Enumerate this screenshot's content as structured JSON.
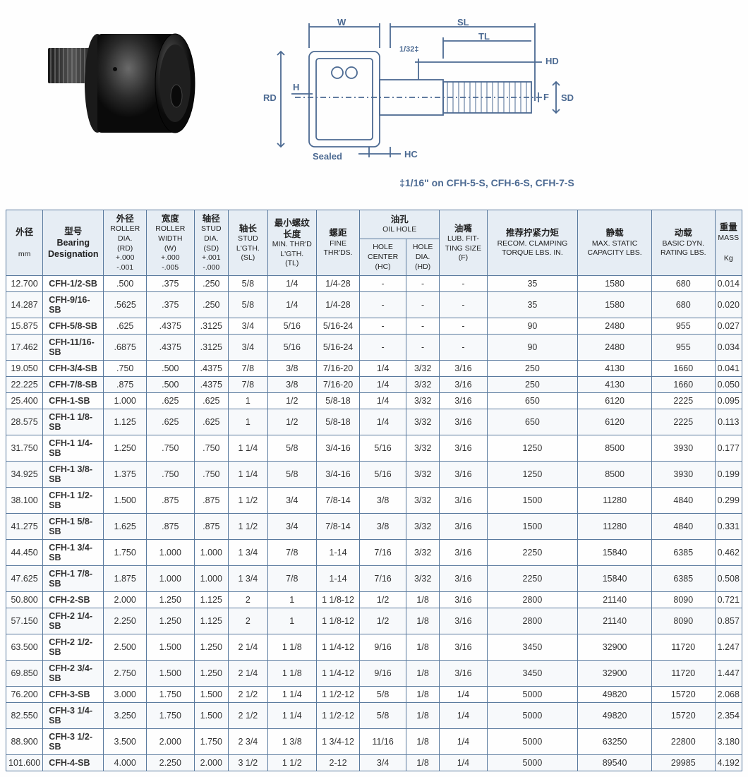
{
  "diagram": {
    "labels": {
      "W": "W",
      "SL": "SL",
      "TL": "TL",
      "HD": "HD",
      "SD": "SD",
      "F": "F",
      "RD": "RD",
      "H": "H",
      "HC": "HC",
      "Sealed": "Sealed",
      "tol1": "1/32‡"
    },
    "caption": "‡1/16\" on CFH-5-S, CFH-6-S, CFH-7-S",
    "line_color": "#4c6a92",
    "text_color": "#4c6a92",
    "bg_color": "#ffffff"
  },
  "table": {
    "border_color": "#5a7a9e",
    "header_bg": "#e6edf4",
    "row_alt_bg": "#f7f9fb",
    "headers": {
      "od": {
        "cn": "外径",
        "en": "",
        "unit": "mm"
      },
      "desig": {
        "cn": "型号",
        "en1": "Bearing",
        "en2": "Designation"
      },
      "rd": {
        "cn": "外径",
        "en": "ROLLER DIA.",
        "code": "(RD)",
        "tol": "+.000\n-.001"
      },
      "w": {
        "cn": "宽度",
        "en": "ROLLER WIDTH",
        "code": "(W)",
        "tol": "+.000\n-.005"
      },
      "sd": {
        "cn": "轴径",
        "en": "STUD DIA.",
        "code": "(SD)",
        "tol": "+.001\n-.000"
      },
      "sl": {
        "cn": "轴长",
        "en": "STUD L'GTH.",
        "code": "(SL)"
      },
      "tl": {
        "cn": "最小螺纹长度",
        "en": "MIN. THR'D L'GTH.",
        "code": "(TL)"
      },
      "thrds": {
        "cn": "螺距",
        "en": "FINE THR'DS."
      },
      "oilhole": {
        "cn": "油孔",
        "en": "OIL HOLE"
      },
      "hc": {
        "en": "HOLE CENTER",
        "code": "(HC)"
      },
      "hd": {
        "en": "HOLE DIA.",
        "code": "(HD)"
      },
      "f": {
        "cn": "油嘴",
        "en": "LUB. FIT-TING SIZE",
        "code": "(F)"
      },
      "torque": {
        "cn": "推荐拧紧力矩",
        "en": "RECOM. CLAMPING TORQUE LBS. IN."
      },
      "static": {
        "cn": "静载",
        "en": "MAX. STATIC CAPACITY LBS."
      },
      "dyn": {
        "cn": "动载",
        "en": "BASIC DYN. RATING LBS."
      },
      "mass": {
        "cn": "重量",
        "en": "MASS",
        "unit": "Kg"
      }
    },
    "rows": [
      {
        "od": "12.700",
        "desig": "CFH-1/2-SB",
        "rd": ".500",
        "w": ".375",
        "sd": ".250",
        "sl": "5/8",
        "tl": "1/4",
        "thrds": "1/4-28",
        "hc": "-",
        "hd": "-",
        "f": "-",
        "torque": "35",
        "static": "1580",
        "dyn": "680",
        "mass": "0.014"
      },
      {
        "od": "14.287",
        "desig": "CFH-9/16-SB",
        "rd": ".5625",
        "w": ".375",
        "sd": ".250",
        "sl": "5/8",
        "tl": "1/4",
        "thrds": "1/4-28",
        "hc": "-",
        "hd": "-",
        "f": "-",
        "torque": "35",
        "static": "1580",
        "dyn": "680",
        "mass": "0.020"
      },
      {
        "od": "15.875",
        "desig": "CFH-5/8-SB",
        "rd": ".625",
        "w": ".4375",
        "sd": ".3125",
        "sl": "3/4",
        "tl": "5/16",
        "thrds": "5/16-24",
        "hc": "-",
        "hd": "-",
        "f": "-",
        "torque": "90",
        "static": "2480",
        "dyn": "955",
        "mass": "0.027"
      },
      {
        "od": "17.462",
        "desig": "CFH-11/16-SB",
        "rd": ".6875",
        "w": ".4375",
        "sd": ".3125",
        "sl": "3/4",
        "tl": "5/16",
        "thrds": "5/16-24",
        "hc": "-",
        "hd": "-",
        "f": "-",
        "torque": "90",
        "static": "2480",
        "dyn": "955",
        "mass": "0.034"
      },
      {
        "od": "19.050",
        "desig": "CFH-3/4-SB",
        "rd": ".750",
        "w": ".500",
        "sd": ".4375",
        "sl": "7/8",
        "tl": "3/8",
        "thrds": "7/16-20",
        "hc": "1/4",
        "hd": "3/32",
        "f": "3/16",
        "torque": "250",
        "static": "4130",
        "dyn": "1660",
        "mass": "0.041"
      },
      {
        "od": "22.225",
        "desig": "CFH-7/8-SB",
        "rd": ".875",
        "w": ".500",
        "sd": ".4375",
        "sl": "7/8",
        "tl": "3/8",
        "thrds": "7/16-20",
        "hc": "1/4",
        "hd": "3/32",
        "f": "3/16",
        "torque": "250",
        "static": "4130",
        "dyn": "1660",
        "mass": "0.050"
      },
      {
        "od": "25.400",
        "desig": "CFH-1-SB",
        "rd": "1.000",
        "w": ".625",
        "sd": ".625",
        "sl": "1",
        "tl": "1/2",
        "thrds": "5/8-18",
        "hc": "1/4",
        "hd": "3/32",
        "f": "3/16",
        "torque": "650",
        "static": "6120",
        "dyn": "2225",
        "mass": "0.095"
      },
      {
        "od": "28.575",
        "desig": "CFH-1 1/8-SB",
        "rd": "1.125",
        "w": ".625",
        "sd": ".625",
        "sl": "1",
        "tl": "1/2",
        "thrds": "5/8-18",
        "hc": "1/4",
        "hd": "3/32",
        "f": "3/16",
        "torque": "650",
        "static": "6120",
        "dyn": "2225",
        "mass": "0.113"
      },
      {
        "od": "31.750",
        "desig": "CFH-1 1/4-SB",
        "rd": "1.250",
        "w": ".750",
        "sd": ".750",
        "sl": "1 1/4",
        "tl": "5/8",
        "thrds": "3/4-16",
        "hc": "5/16",
        "hd": "3/32",
        "f": "3/16",
        "torque": "1250",
        "static": "8500",
        "dyn": "3930",
        "mass": "0.177"
      },
      {
        "od": "34.925",
        "desig": "CFH-1 3/8-SB",
        "rd": "1.375",
        "w": ".750",
        "sd": ".750",
        "sl": "1 1/4",
        "tl": "5/8",
        "thrds": "3/4-16",
        "hc": "5/16",
        "hd": "3/32",
        "f": "3/16",
        "torque": "1250",
        "static": "8500",
        "dyn": "3930",
        "mass": "0.199"
      },
      {
        "od": "38.100",
        "desig": "CFH-1 1/2-SB",
        "rd": "1.500",
        "w": ".875",
        "sd": ".875",
        "sl": "1 1/2",
        "tl": "3/4",
        "thrds": "7/8-14",
        "hc": "3/8",
        "hd": "3/32",
        "f": "3/16",
        "torque": "1500",
        "static": "11280",
        "dyn": "4840",
        "mass": "0.299"
      },
      {
        "od": "41.275",
        "desig": "CFH-1 5/8-SB",
        "rd": "1.625",
        "w": ".875",
        "sd": ".875",
        "sl": "1 1/2",
        "tl": "3/4",
        "thrds": "7/8-14",
        "hc": "3/8",
        "hd": "3/32",
        "f": "3/16",
        "torque": "1500",
        "static": "11280",
        "dyn": "4840",
        "mass": "0.331"
      },
      {
        "od": "44.450",
        "desig": "CFH-1 3/4-SB",
        "rd": "1.750",
        "w": "1.000",
        "sd": "1.000",
        "sl": "1 3/4",
        "tl": "7/8",
        "thrds": "1-14",
        "hc": "7/16",
        "hd": "3/32",
        "f": "3/16",
        "torque": "2250",
        "static": "15840",
        "dyn": "6385",
        "mass": "0.462"
      },
      {
        "od": "47.625",
        "desig": "CFH-1 7/8-SB",
        "rd": "1.875",
        "w": "1.000",
        "sd": "1.000",
        "sl": "1 3/4",
        "tl": "7/8",
        "thrds": "1-14",
        "hc": "7/16",
        "hd": "3/32",
        "f": "3/16",
        "torque": "2250",
        "static": "15840",
        "dyn": "6385",
        "mass": "0.508"
      },
      {
        "od": "50.800",
        "desig": "CFH-2-SB",
        "rd": "2.000",
        "w": "1.250",
        "sd": "1.125",
        "sl": "2",
        "tl": "1",
        "thrds": "1 1/8-12",
        "hc": "1/2",
        "hd": "1/8",
        "f": "3/16",
        "torque": "2800",
        "static": "21140",
        "dyn": "8090",
        "mass": "0.721"
      },
      {
        "od": "57.150",
        "desig": "CFH-2 1/4-SB",
        "rd": "2.250",
        "w": "1.250",
        "sd": "1.125",
        "sl": "2",
        "tl": "1",
        "thrds": "1 1/8-12",
        "hc": "1/2",
        "hd": "1/8",
        "f": "3/16",
        "torque": "2800",
        "static": "21140",
        "dyn": "8090",
        "mass": "0.857"
      },
      {
        "od": "63.500",
        "desig": "CFH-2 1/2-SB",
        "rd": "2.500",
        "w": "1.500",
        "sd": "1.250",
        "sl": "2 1/4",
        "tl": "1 1/8",
        "thrds": "1 1/4-12",
        "hc": "9/16",
        "hd": "1/8",
        "f": "3/16",
        "torque": "3450",
        "static": "32900",
        "dyn": "11720",
        "mass": "1.247"
      },
      {
        "od": "69.850",
        "desig": "CFH-2 3/4-SB",
        "rd": "2.750",
        "w": "1.500",
        "sd": "1.250",
        "sl": "2 1/4",
        "tl": "1 1/8",
        "thrds": "1 1/4-12",
        "hc": "9/16",
        "hd": "1/8",
        "f": "3/16",
        "torque": "3450",
        "static": "32900",
        "dyn": "11720",
        "mass": "1.447"
      },
      {
        "od": "76.200",
        "desig": "CFH-3-SB",
        "rd": "3.000",
        "w": "1.750",
        "sd": "1.500",
        "sl": "2 1/2",
        "tl": "1 1/4",
        "thrds": "1 1/2-12",
        "hc": "5/8",
        "hd": "1/8",
        "f": "1/4",
        "torque": "5000",
        "static": "49820",
        "dyn": "15720",
        "mass": "2.068"
      },
      {
        "od": "82.550",
        "desig": "CFH-3 1/4-SB",
        "rd": "3.250",
        "w": "1.750",
        "sd": "1.500",
        "sl": "2 1/2",
        "tl": "1 1/4",
        "thrds": "1 1/2-12",
        "hc": "5/8",
        "hd": "1/8",
        "f": "1/4",
        "torque": "5000",
        "static": "49820",
        "dyn": "15720",
        "mass": "2.354"
      },
      {
        "od": "88.900",
        "desig": "CFH-3 1/2-SB",
        "rd": "3.500",
        "w": "2.000",
        "sd": "1.750",
        "sl": "2 3/4",
        "tl": "1 3/8",
        "thrds": "1 3/4-12",
        "hc": "11/16",
        "hd": "1/8",
        "f": "1/4",
        "torque": "5000",
        "static": "63250",
        "dyn": "22800",
        "mass": "3.180"
      },
      {
        "od": "101.600",
        "desig": "CFH-4-SB",
        "rd": "4.000",
        "w": "2.250",
        "sd": "2.000",
        "sl": "3 1/2",
        "tl": "1 1/2",
        "thrds": "2-12",
        "hc": "3/4",
        "hd": "1/8",
        "f": "1/4",
        "torque": "5000",
        "static": "89540",
        "dyn": "29985",
        "mass": "4.192"
      }
    ]
  }
}
